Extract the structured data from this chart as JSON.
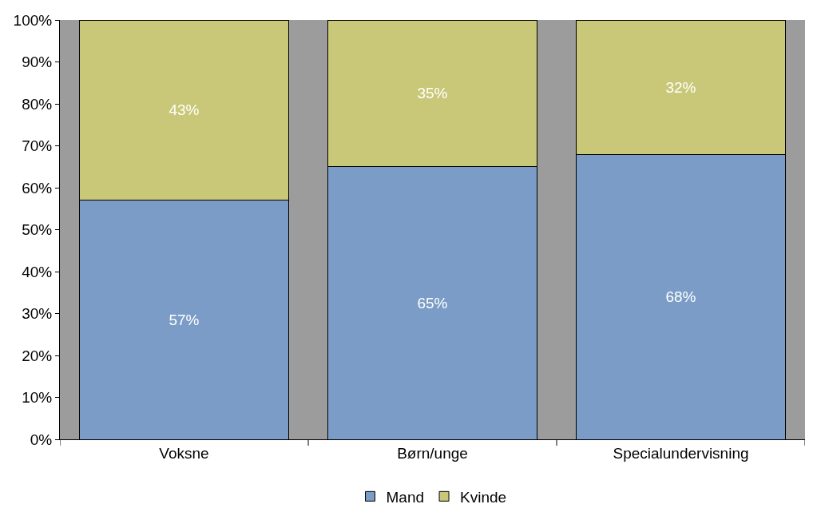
{
  "chart_data": {
    "type": "bar",
    "stacked": true,
    "categories": [
      "Voksne",
      "Børn/unge",
      "Specialundervisning"
    ],
    "series": [
      {
        "name": "Mand",
        "color": "#7a9cc6",
        "values": [
          57,
          65,
          68
        ],
        "value_labels": [
          "57%",
          "65%",
          "68%"
        ]
      },
      {
        "name": "Kvinde",
        "color": "#c9c878",
        "values": [
          43,
          35,
          32
        ],
        "value_labels": [
          "43%",
          "35%",
          "32%"
        ]
      }
    ],
    "ylim": [
      0,
      100
    ],
    "yticks": [
      {
        "value": 0,
        "label": "0%"
      },
      {
        "value": 10,
        "label": "10%"
      },
      {
        "value": 20,
        "label": "20%"
      },
      {
        "value": 30,
        "label": "30%"
      },
      {
        "value": 40,
        "label": "40%"
      },
      {
        "value": 50,
        "label": "50%"
      },
      {
        "value": 60,
        "label": "60%"
      },
      {
        "value": 70,
        "label": "70%"
      },
      {
        "value": 80,
        "label": "80%"
      },
      {
        "value": 90,
        "label": "90%"
      },
      {
        "value": 100,
        "label": "100%"
      }
    ],
    "legend": "bottom",
    "grid": false
  }
}
